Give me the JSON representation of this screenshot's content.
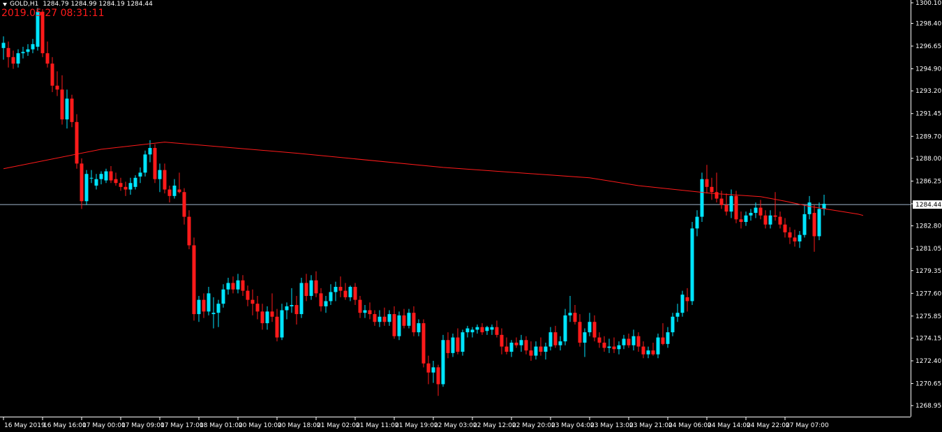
{
  "header": {
    "symbol": "GOLD,H1",
    "ohlc": "1284.79 1284.99 1284.19 1284.44",
    "timestamp": "2019.05.27 08:31:11"
  },
  "colors": {
    "background": "#000000",
    "bull": "#00e5ff",
    "bear": "#ff1a1a",
    "ma": "#ff1a1a",
    "price_line": "#9fb6cc",
    "axis": "#ffffff",
    "text": "#ffffff"
  },
  "chart_data": {
    "type": "candlestick",
    "symbol": "GOLD",
    "timeframe": "H1",
    "current_price": 1284.44,
    "current_price_label": "1284.44",
    "ylim": [
      1268.1,
      1300.2
    ],
    "y_ticks": [
      "1300.10",
      "1298.40",
      "1296.65",
      "1294.90",
      "1293.20",
      "1291.45",
      "1289.70",
      "1288.00",
      "1286.25",
      "1284.50",
      "1282.80",
      "1281.05",
      "1279.35",
      "1277.60",
      "1275.85",
      "1274.15",
      "1272.40",
      "1270.65",
      "1268.95"
    ],
    "x_ticks": [
      {
        "label": "16 May 2019",
        "index": 0
      },
      {
        "label": "16 May 16:00",
        "index": 8
      },
      {
        "label": "17 May 00:00",
        "index": 16
      },
      {
        "label": "17 May 09:00",
        "index": 24
      },
      {
        "label": "17 May 17:00",
        "index": 32
      },
      {
        "label": "18 May 01:00",
        "index": 40
      },
      {
        "label": "20 May 10:00",
        "index": 48
      },
      {
        "label": "20 May 18:00",
        "index": 56
      },
      {
        "label": "21 May 02:00",
        "index": 64
      },
      {
        "label": "21 May 11:00",
        "index": 72
      },
      {
        "label": "21 May 19:00",
        "index": 80
      },
      {
        "label": "22 May 03:00",
        "index": 88
      },
      {
        "label": "22 May 12:00",
        "index": 96
      },
      {
        "label": "22 May 20:00",
        "index": 104
      },
      {
        "label": "23 May 04:00",
        "index": 112
      },
      {
        "label": "23 May 13:00",
        "index": 120
      },
      {
        "label": "23 May 21:00",
        "index": 128
      },
      {
        "label": "24 May 06:00",
        "index": 136
      },
      {
        "label": "24 May 14:00",
        "index": 144
      },
      {
        "label": "24 May 22:00",
        "index": 152
      },
      {
        "label": "27 May 07:00",
        "index": 160
      }
    ],
    "candles": [
      [
        1296.5,
        1297.4,
        1295.6,
        1296.9
      ],
      [
        1296.5,
        1297.0,
        1295.0,
        1295.8
      ],
      [
        1295.8,
        1296.3,
        1294.9,
        1295.3
      ],
      [
        1295.3,
        1296.4,
        1295.0,
        1296.1
      ],
      [
        1296.1,
        1296.6,
        1295.7,
        1296.2
      ],
      [
        1296.2,
        1296.8,
        1295.9,
        1296.4
      ],
      [
        1296.4,
        1297.2,
        1296.1,
        1296.8
      ],
      [
        1296.6,
        1299.6,
        1296.3,
        1299.3
      ],
      [
        1299.3,
        1299.5,
        1295.8,
        1296.1
      ],
      [
        1296.1,
        1297.0,
        1295.0,
        1295.3
      ],
      [
        1295.3,
        1295.8,
        1293.1,
        1293.6
      ],
      [
        1293.6,
        1294.7,
        1292.8,
        1293.3
      ],
      [
        1293.3,
        1294.4,
        1290.6,
        1291.0
      ],
      [
        1291.0,
        1293.3,
        1290.3,
        1292.6
      ],
      [
        1292.6,
        1292.9,
        1290.4,
        1290.8
      ],
      [
        1290.8,
        1291.4,
        1287.2,
        1287.6
      ],
      [
        1287.6,
        1288.0,
        1284.1,
        1284.7
      ],
      [
        1284.7,
        1287.1,
        1284.4,
        1286.8
      ],
      [
        1286.5,
        1287.1,
        1286.1,
        1286.5
      ],
      [
        1285.9,
        1286.8,
        1285.6,
        1286.4
      ],
      [
        1286.4,
        1287.0,
        1286.0,
        1286.8
      ],
      [
        1286.3,
        1287.2,
        1286.1,
        1287.0
      ],
      [
        1287.0,
        1287.4,
        1286.1,
        1286.3
      ],
      [
        1286.4,
        1286.9,
        1285.9,
        1286.1
      ],
      [
        1286.1,
        1286.5,
        1285.5,
        1285.8
      ],
      [
        1285.8,
        1286.2,
        1285.1,
        1285.6
      ],
      [
        1285.6,
        1286.5,
        1285.2,
        1286.1
      ],
      [
        1285.8,
        1286.7,
        1285.6,
        1286.5
      ],
      [
        1286.6,
        1287.3,
        1286.1,
        1286.9
      ],
      [
        1286.9,
        1288.6,
        1286.6,
        1288.3
      ],
      [
        1288.3,
        1289.4,
        1287.7,
        1288.8
      ],
      [
        1288.8,
        1289.1,
        1286.1,
        1286.4
      ],
      [
        1286.4,
        1287.6,
        1285.4,
        1287.1
      ],
      [
        1287.1,
        1287.6,
        1285.3,
        1285.6
      ],
      [
        1285.6,
        1285.9,
        1284.6,
        1285.1
      ],
      [
        1285.1,
        1286.4,
        1284.9,
        1285.9
      ],
      [
        1285.6,
        1286.9,
        1285.3,
        1285.4
      ],
      [
        1285.4,
        1285.7,
        1282.9,
        1283.5
      ],
      [
        1283.5,
        1284.0,
        1281.0,
        1281.3
      ],
      [
        1281.3,
        1281.9,
        1275.5,
        1276.0
      ],
      [
        1276.0,
        1277.4,
        1275.4,
        1277.1
      ],
      [
        1277.1,
        1277.6,
        1275.7,
        1276.2
      ],
      [
        1276.2,
        1278.1,
        1275.9,
        1277.6
      ],
      [
        1276.0,
        1277.3,
        1274.9,
        1276.1
      ],
      [
        1276.1,
        1277.1,
        1275.0,
        1276.8
      ],
      [
        1276.8,
        1278.3,
        1276.5,
        1277.9
      ],
      [
        1277.9,
        1278.8,
        1277.5,
        1278.4
      ],
      [
        1278.4,
        1278.9,
        1277.6,
        1277.9
      ],
      [
        1277.9,
        1279.1,
        1277.6,
        1278.6
      ],
      [
        1278.6,
        1279.0,
        1277.4,
        1277.8
      ],
      [
        1277.8,
        1278.2,
        1276.6,
        1277.1
      ],
      [
        1277.1,
        1277.9,
        1275.9,
        1276.8
      ],
      [
        1276.8,
        1277.4,
        1275.6,
        1276.2
      ],
      [
        1276.2,
        1276.8,
        1274.8,
        1275.3
      ],
      [
        1275.3,
        1276.6,
        1274.8,
        1276.2
      ],
      [
        1276.2,
        1277.6,
        1275.4,
        1275.8
      ],
      [
        1275.8,
        1276.4,
        1273.9,
        1274.2
      ],
      [
        1274.2,
        1276.8,
        1274.0,
        1276.3
      ],
      [
        1276.3,
        1276.9,
        1275.6,
        1276.6
      ],
      [
        1276.6,
        1278.0,
        1276.1,
        1276.7
      ],
      [
        1276.7,
        1277.4,
        1275.2,
        1276.0
      ],
      [
        1276.0,
        1278.8,
        1275.7,
        1278.4
      ],
      [
        1278.4,
        1279.1,
        1277.0,
        1277.4
      ],
      [
        1277.4,
        1279.0,
        1277.1,
        1278.6
      ],
      [
        1278.6,
        1279.3,
        1277.3,
        1277.6
      ],
      [
        1277.6,
        1278.0,
        1276.2,
        1276.6
      ],
      [
        1276.6,
        1277.4,
        1276.1,
        1277.0
      ],
      [
        1277.0,
        1278.3,
        1276.7,
        1277.7
      ],
      [
        1277.7,
        1278.5,
        1277.0,
        1278.1
      ],
      [
        1278.1,
        1278.9,
        1277.3,
        1277.8
      ],
      [
        1277.8,
        1278.4,
        1277.1,
        1277.3
      ],
      [
        1277.3,
        1278.2,
        1277.0,
        1278.1
      ],
      [
        1278.1,
        1278.4,
        1276.7,
        1277.1
      ],
      [
        1277.1,
        1277.4,
        1275.7,
        1276.1
      ],
      [
        1276.1,
        1276.7,
        1275.7,
        1276.3
      ],
      [
        1276.3,
        1276.9,
        1275.6,
        1276.0
      ],
      [
        1276.0,
        1276.3,
        1275.1,
        1275.4
      ],
      [
        1275.4,
        1276.3,
        1275.0,
        1275.8
      ],
      [
        1275.8,
        1276.5,
        1275.1,
        1275.4
      ],
      [
        1275.4,
        1276.3,
        1275.1,
        1276.0
      ],
      [
        1276.0,
        1276.6,
        1274.1,
        1274.3
      ],
      [
        1274.3,
        1276.2,
        1274.0,
        1275.9
      ],
      [
        1275.9,
        1276.4,
        1274.9,
        1275.1
      ],
      [
        1275.1,
        1276.4,
        1274.9,
        1276.1
      ],
      [
        1276.1,
        1276.6,
        1274.3,
        1274.6
      ],
      [
        1274.6,
        1275.6,
        1274.3,
        1275.3
      ],
      [
        1275.3,
        1275.6,
        1271.9,
        1272.2
      ],
      [
        1272.2,
        1272.8,
        1270.6,
        1271.5
      ],
      [
        1271.5,
        1272.4,
        1270.7,
        1271.9
      ],
      [
        1271.9,
        1272.1,
        1269.7,
        1270.6
      ],
      [
        1270.6,
        1274.4,
        1270.4,
        1274.0
      ],
      [
        1274.0,
        1274.6,
        1272.6,
        1273.0
      ],
      [
        1273.0,
        1274.5,
        1272.7,
        1274.2
      ],
      [
        1274.2,
        1274.9,
        1272.9,
        1273.1
      ],
      [
        1273.1,
        1274.8,
        1272.8,
        1274.6
      ],
      [
        1274.6,
        1275.1,
        1274.2,
        1274.9
      ],
      [
        1274.6,
        1275.0,
        1274.2,
        1274.8
      ],
      [
        1274.8,
        1275.2,
        1274.5,
        1275.0
      ],
      [
        1275.0,
        1275.3,
        1274.4,
        1274.6
      ],
      [
        1274.7,
        1275.1,
        1274.4,
        1275.0
      ],
      [
        1274.8,
        1275.2,
        1274.4,
        1275.0
      ],
      [
        1275.0,
        1275.5,
        1274.2,
        1274.4
      ],
      [
        1274.4,
        1274.9,
        1272.9,
        1273.5
      ],
      [
        1273.5,
        1274.2,
        1272.9,
        1273.1
      ],
      [
        1273.1,
        1274.0,
        1272.7,
        1273.8
      ],
      [
        1273.8,
        1274.2,
        1273.4,
        1273.6
      ],
      [
        1273.6,
        1274.4,
        1273.1,
        1274.0
      ],
      [
        1274.0,
        1274.3,
        1272.9,
        1273.2
      ],
      [
        1273.2,
        1273.9,
        1272.4,
        1272.8
      ],
      [
        1272.8,
        1273.9,
        1272.5,
        1273.5
      ],
      [
        1273.5,
        1274.2,
        1272.8,
        1273.1
      ],
      [
        1273.1,
        1273.8,
        1272.5,
        1273.5
      ],
      [
        1273.5,
        1275.0,
        1273.2,
        1274.6
      ],
      [
        1274.6,
        1275.1,
        1273.4,
        1273.6
      ],
      [
        1273.6,
        1274.3,
        1273.2,
        1273.9
      ],
      [
        1273.9,
        1276.4,
        1273.6,
        1275.9
      ],
      [
        1275.9,
        1277.4,
        1275.4,
        1276.1
      ],
      [
        1276.1,
        1276.7,
        1275.2,
        1275.4
      ],
      [
        1275.4,
        1276.0,
        1273.5,
        1273.8
      ],
      [
        1273.8,
        1274.9,
        1272.7,
        1274.6
      ],
      [
        1274.6,
        1276.1,
        1274.3,
        1275.4
      ],
      [
        1275.4,
        1275.9,
        1273.9,
        1274.2
      ],
      [
        1274.2,
        1274.6,
        1273.4,
        1273.8
      ],
      [
        1273.8,
        1274.3,
        1273.1,
        1273.4
      ],
      [
        1273.4,
        1274.1,
        1273.0,
        1273.5
      ],
      [
        1273.5,
        1274.2,
        1273.0,
        1273.3
      ],
      [
        1273.3,
        1273.9,
        1272.9,
        1273.6
      ],
      [
        1273.6,
        1274.4,
        1273.3,
        1274.1
      ],
      [
        1274.1,
        1274.5,
        1273.4,
        1273.6
      ],
      [
        1273.6,
        1274.8,
        1273.2,
        1274.3
      ],
      [
        1274.3,
        1274.6,
        1273.1,
        1273.5
      ],
      [
        1273.5,
        1273.9,
        1272.6,
        1272.9
      ],
      [
        1272.9,
        1273.5,
        1272.6,
        1273.2
      ],
      [
        1273.2,
        1273.8,
        1272.8,
        1272.9
      ],
      [
        1272.9,
        1274.5,
        1272.6,
        1274.2
      ],
      [
        1274.2,
        1275.3,
        1273.6,
        1273.7
      ],
      [
        1273.7,
        1275.0,
        1273.4,
        1274.6
      ],
      [
        1274.6,
        1276.1,
        1274.3,
        1275.8
      ],
      [
        1275.8,
        1276.8,
        1275.4,
        1276.1
      ],
      [
        1276.1,
        1277.8,
        1275.8,
        1277.5
      ],
      [
        1277.3,
        1278.0,
        1276.2,
        1277.0
      ],
      [
        1277.0,
        1283.1,
        1276.7,
        1282.6
      ],
      [
        1282.6,
        1284.0,
        1282.0,
        1283.5
      ],
      [
        1283.5,
        1286.9,
        1283.1,
        1286.4
      ],
      [
        1286.4,
        1287.5,
        1285.3,
        1285.8
      ],
      [
        1285.8,
        1286.5,
        1284.8,
        1285.4
      ],
      [
        1285.4,
        1286.9,
        1284.6,
        1284.9
      ],
      [
        1284.9,
        1285.5,
        1284.1,
        1284.4
      ],
      [
        1284.4,
        1285.3,
        1283.6,
        1283.9
      ],
      [
        1283.9,
        1285.6,
        1283.4,
        1285.1
      ],
      [
        1285.1,
        1285.5,
        1283.0,
        1283.3
      ],
      [
        1283.3,
        1283.9,
        1282.6,
        1283.1
      ],
      [
        1283.1,
        1283.9,
        1282.8,
        1283.6
      ],
      [
        1283.6,
        1284.1,
        1283.2,
        1283.8
      ],
      [
        1283.8,
        1284.6,
        1283.4,
        1284.2
      ],
      [
        1284.2,
        1284.8,
        1283.3,
        1283.6
      ],
      [
        1283.6,
        1284.0,
        1282.6,
        1282.9
      ],
      [
        1282.9,
        1284.0,
        1282.6,
        1283.6
      ],
      [
        1283.6,
        1285.4,
        1283.2,
        1283.5
      ],
      [
        1283.5,
        1283.9,
        1282.6,
        1282.9
      ],
      [
        1282.9,
        1283.4,
        1281.9,
        1282.3
      ],
      [
        1282.3,
        1282.7,
        1281.4,
        1281.9
      ],
      [
        1281.9,
        1282.5,
        1281.2,
        1281.6
      ],
      [
        1281.6,
        1282.4,
        1281.1,
        1282.1
      ],
      [
        1282.1,
        1284.4,
        1281.9,
        1283.7
      ],
      [
        1283.7,
        1285.1,
        1283.3,
        1284.6
      ],
      [
        1283.8,
        1284.4,
        1280.8,
        1282.0
      ],
      [
        1282.0,
        1284.6,
        1281.7,
        1284.1
      ],
      [
        1284.1,
        1285.2,
        1283.6,
        1284.5
      ]
    ],
    "moving_average": [
      [
        0,
        1287.2
      ],
      [
        20,
        1288.7
      ],
      [
        33,
        1289.25
      ],
      [
        60,
        1288.4
      ],
      [
        90,
        1287.3
      ],
      [
        120,
        1286.5
      ],
      [
        130,
        1285.9
      ],
      [
        145,
        1285.3
      ],
      [
        155,
        1285.05
      ],
      [
        160,
        1284.7
      ],
      [
        165,
        1284.3
      ],
      [
        170,
        1284.0
      ],
      [
        175,
        1283.7
      ],
      [
        176,
        1283.6
      ]
    ]
  }
}
